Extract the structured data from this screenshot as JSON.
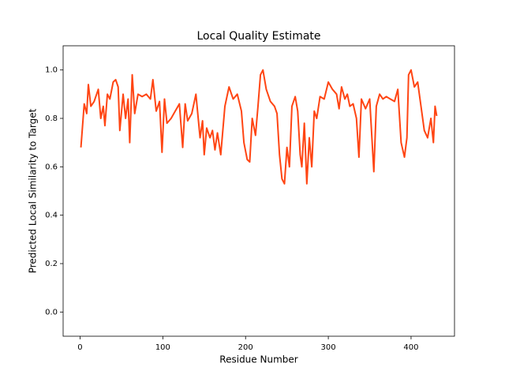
{
  "chart_data": {
    "type": "line",
    "title": "Local Quality Estimate",
    "x_label": "Residue Number",
    "y_label": "Predicted Local Similarity to Target",
    "x": [
      1,
      5,
      8,
      10,
      13,
      17,
      20,
      22,
      25,
      28,
      30,
      33,
      36,
      40,
      43,
      46,
      48,
      52,
      55,
      58,
      60,
      63,
      66,
      70,
      75,
      80,
      85,
      88,
      92,
      96,
      99,
      102,
      105,
      110,
      115,
      120,
      124,
      127,
      130,
      135,
      140,
      145,
      148,
      150,
      153,
      157,
      160,
      163,
      166,
      170,
      175,
      180,
      185,
      190,
      195,
      198,
      202,
      205,
      208,
      212,
      215,
      218,
      221,
      225,
      230,
      235,
      238,
      241,
      244,
      247,
      250,
      253,
      256,
      260,
      263,
      266,
      268,
      271,
      274,
      277,
      280,
      283,
      286,
      290,
      295,
      300,
      305,
      310,
      313,
      316,
      320,
      323,
      326,
      330,
      334,
      337,
      340,
      345,
      350,
      355,
      358,
      362,
      366,
      370,
      375,
      380,
      384,
      388,
      392,
      395,
      397,
      400,
      404,
      408,
      412,
      416,
      420,
      424,
      427,
      429,
      431
    ],
    "series": [
      {
        "name": "Local Quality",
        "color": "#ff4513",
        "values": [
          0.68,
          0.86,
          0.82,
          0.94,
          0.85,
          0.87,
          0.9,
          0.92,
          0.8,
          0.85,
          0.77,
          0.9,
          0.88,
          0.95,
          0.96,
          0.93,
          0.75,
          0.9,
          0.8,
          0.88,
          0.7,
          0.98,
          0.82,
          0.9,
          0.89,
          0.9,
          0.88,
          0.96,
          0.83,
          0.87,
          0.66,
          0.88,
          0.78,
          0.8,
          0.83,
          0.86,
          0.68,
          0.86,
          0.79,
          0.82,
          0.9,
          0.72,
          0.79,
          0.65,
          0.76,
          0.72,
          0.75,
          0.67,
          0.74,
          0.65,
          0.85,
          0.93,
          0.88,
          0.9,
          0.83,
          0.7,
          0.63,
          0.62,
          0.8,
          0.73,
          0.85,
          0.98,
          1.0,
          0.92,
          0.87,
          0.85,
          0.82,
          0.65,
          0.55,
          0.53,
          0.68,
          0.6,
          0.85,
          0.89,
          0.83,
          0.65,
          0.6,
          0.78,
          0.53,
          0.72,
          0.6,
          0.83,
          0.8,
          0.89,
          0.88,
          0.95,
          0.92,
          0.9,
          0.84,
          0.93,
          0.88,
          0.9,
          0.85,
          0.86,
          0.8,
          0.64,
          0.88,
          0.84,
          0.88,
          0.58,
          0.85,
          0.9,
          0.88,
          0.89,
          0.88,
          0.87,
          0.92,
          0.7,
          0.64,
          0.72,
          0.98,
          1.0,
          0.93,
          0.95,
          0.85,
          0.75,
          0.72,
          0.8,
          0.7,
          0.85,
          0.81
        ]
      }
    ],
    "xlim": [
      -20.5,
      452.5
    ],
    "ylim": [
      -0.1,
      1.1
    ],
    "xticks": [
      0,
      100,
      200,
      300,
      400
    ],
    "yticks": [
      {
        "value": 0.0,
        "label": "0.0"
      },
      0.2,
      0.4,
      0.6,
      0.8,
      {
        "value": 1.0,
        "label": "1.0"
      }
    ]
  }
}
